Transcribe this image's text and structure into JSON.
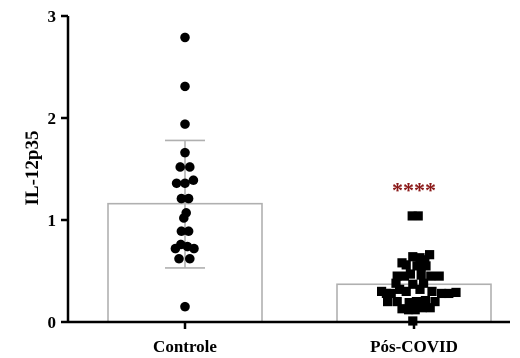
{
  "chart_data": {
    "type": "bar",
    "title": "",
    "xlabel": "",
    "ylabel": "IL-12p35",
    "ylim": [
      0,
      3
    ],
    "yticks": [
      "0",
      "1",
      "2",
      "3"
    ],
    "grid": false,
    "categories": [
      "Controle",
      "Pós-COVID"
    ],
    "means": [
      1.16,
      0.37
    ],
    "error_upper": [
      1.78,
      null
    ],
    "error_lower": [
      0.53,
      null
    ],
    "annotations": [
      {
        "category": "Pós-COVID",
        "text": "****",
        "y": 1.32,
        "color": "#8b1a1a"
      }
    ],
    "colors": {
      "bar_edge": "#b0b0b0",
      "points": "#000000",
      "sig": "#8b1a1a"
    },
    "series": [
      {
        "category": "Controle",
        "marker": "circle",
        "points": [
          [
            0,
            2.79
          ],
          [
            0,
            2.31
          ],
          [
            0,
            1.94
          ],
          [
            0,
            1.66
          ],
          [
            -0.08,
            1.52
          ],
          [
            0.08,
            1.52
          ],
          [
            -0.14,
            1.36
          ],
          [
            0,
            1.36
          ],
          [
            0.14,
            1.39
          ],
          [
            -0.06,
            1.21
          ],
          [
            0.06,
            1.21
          ],
          [
            -0.02,
            1.02
          ],
          [
            0.02,
            1.07
          ],
          [
            -0.06,
            0.89
          ],
          [
            0.06,
            0.89
          ],
          [
            -0.16,
            0.72
          ],
          [
            -0.07,
            0.76
          ],
          [
            0.04,
            0.74
          ],
          [
            0.15,
            0.72
          ],
          [
            -0.1,
            0.62
          ],
          [
            0.08,
            0.62
          ],
          [
            0,
            0.15
          ]
        ]
      },
      {
        "category": "Pós-COVID",
        "marker": "square",
        "points": [
          [
            -0.03,
            1.04
          ],
          [
            0.07,
            1.04
          ],
          [
            0.26,
            0.66
          ],
          [
            -0.02,
            0.64
          ],
          [
            0.1,
            0.63
          ],
          [
            0.18,
            0.61
          ],
          [
            -0.2,
            0.58
          ],
          [
            0.05,
            0.55
          ],
          [
            -0.13,
            0.56
          ],
          [
            0.2,
            0.55
          ],
          [
            -0.28,
            0.45
          ],
          [
            -0.16,
            0.45
          ],
          [
            -0.06,
            0.47
          ],
          [
            0.12,
            0.46
          ],
          [
            0.28,
            0.45
          ],
          [
            0.42,
            0.45
          ],
          [
            -0.3,
            0.38
          ],
          [
            -0.02,
            0.37
          ],
          [
            0.16,
            0.38
          ],
          [
            -0.54,
            0.3
          ],
          [
            -0.46,
            0.28
          ],
          [
            -0.38,
            0.28
          ],
          [
            -0.24,
            0.32
          ],
          [
            -0.13,
            0.3
          ],
          [
            0.1,
            0.32
          ],
          [
            0.3,
            0.3
          ],
          [
            0.46,
            0.28
          ],
          [
            0.58,
            0.28
          ],
          [
            0.7,
            0.29
          ],
          [
            -0.44,
            0.2
          ],
          [
            -0.28,
            0.2
          ],
          [
            -0.08,
            0.19
          ],
          [
            0.04,
            0.2
          ],
          [
            0.19,
            0.21
          ],
          [
            0.35,
            0.2
          ],
          [
            -0.2,
            0.13
          ],
          [
            -0.09,
            0.12
          ],
          [
            0.02,
            0.12
          ],
          [
            0.14,
            0.14
          ],
          [
            0.27,
            0.14
          ],
          [
            -0.02,
            0.01
          ]
        ]
      }
    ]
  }
}
